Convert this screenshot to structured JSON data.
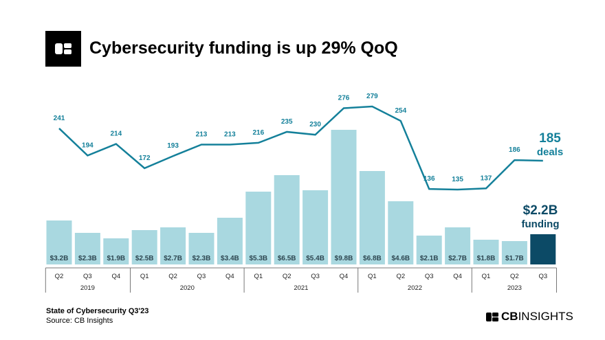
{
  "header": {
    "title": "Cybersecurity funding is up 29% QoQ"
  },
  "footer": {
    "report": "State of Cybersecurity Q3'23",
    "source": "Source: CB Insights",
    "brand_bold": "CB",
    "brand_rest": "INSIGHTS"
  },
  "chart_data": {
    "type": "bar+line",
    "categories": [
      "Q2",
      "Q3",
      "Q4",
      "Q1",
      "Q2",
      "Q3",
      "Q4",
      "Q1",
      "Q2",
      "Q3",
      "Q4",
      "Q1",
      "Q2",
      "Q3",
      "Q4",
      "Q1",
      "Q2",
      "Q3"
    ],
    "years": [
      {
        "label": "2019",
        "span": 3
      },
      {
        "label": "2020",
        "span": 4
      },
      {
        "label": "2021",
        "span": 4
      },
      {
        "label": "2022",
        "span": 4
      },
      {
        "label": "2023",
        "span": 3
      }
    ],
    "funding": {
      "values": [
        3.2,
        2.3,
        1.9,
        2.5,
        2.7,
        2.3,
        3.4,
        5.3,
        6.5,
        5.4,
        9.8,
        6.8,
        4.6,
        2.1,
        2.7,
        1.8,
        1.7,
        2.2
      ],
      "labels": [
        "$3.2B",
        "$2.3B",
        "$1.9B",
        "$2.5B",
        "$2.7B",
        "$2.3B",
        "$3.4B",
        "$5.3B",
        "$6.5B",
        "$5.4B",
        "$9.8B",
        "$6.8B",
        "$4.6B",
        "$2.1B",
        "$2.7B",
        "$1.8B",
        "$1.7B",
        ""
      ],
      "color": "#a9d8e0",
      "highlight_color": "#0c4a66"
    },
    "deals": {
      "values": [
        241,
        194,
        214,
        172,
        193,
        213,
        213,
        216,
        235,
        230,
        276,
        279,
        254,
        136,
        135,
        137,
        186,
        185
      ],
      "color": "#14809a"
    },
    "callouts": {
      "deals_value": "185",
      "deals_label": "deals",
      "funding_value": "$2.2B",
      "funding_label": "funding"
    }
  }
}
